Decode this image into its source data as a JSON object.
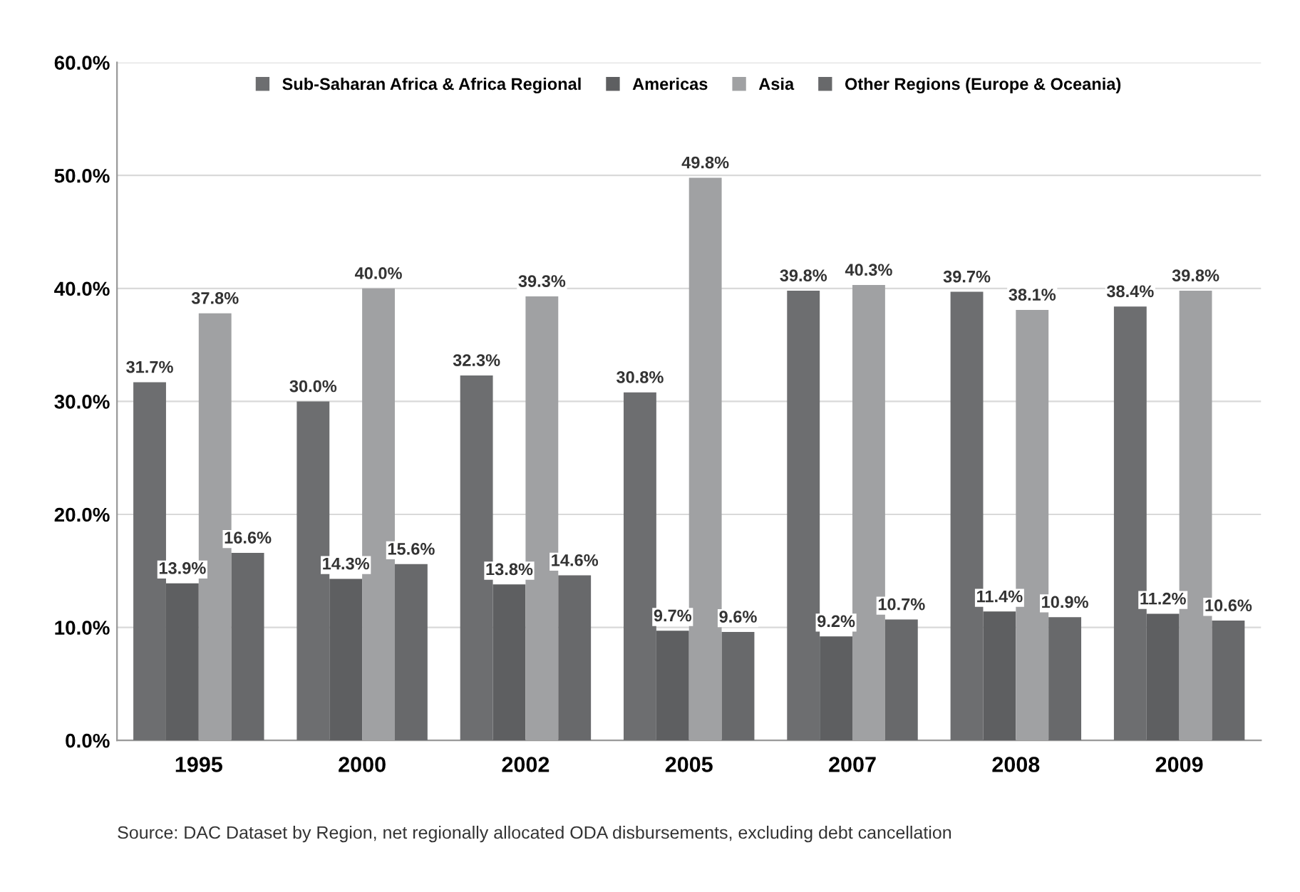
{
  "chart_data": {
    "type": "bar",
    "categories": [
      "1995",
      "2000",
      "2002",
      "2005",
      "2007",
      "2008",
      "2009"
    ],
    "series": [
      {
        "name": "Sub-Saharan Africa & Africa Regional",
        "color": "#6d6e70",
        "values": [
          31.7,
          30.0,
          32.3,
          30.8,
          39.8,
          39.7,
          38.4
        ],
        "value_labels": [
          "31.7%",
          "30.0%",
          "32.3%",
          "30.8%",
          "39.8%",
          "39.7%",
          "38.4%"
        ]
      },
      {
        "name": "Americas",
        "color": "#5e5f61",
        "values": [
          13.9,
          14.3,
          13.8,
          9.7,
          9.2,
          11.4,
          11.2
        ],
        "value_labels": [
          "13.9%",
          "14.3%",
          "13.8%",
          "9.7%",
          "9.2%",
          "11.4%",
          "11.2%"
        ]
      },
      {
        "name": "Asia",
        "color": "#a0a1a3",
        "values": [
          37.8,
          40.0,
          39.3,
          49.8,
          40.3,
          38.1,
          39.8
        ],
        "value_labels": [
          "37.8%",
          "40.0%",
          "39.3%",
          "49.8%",
          "40.3%",
          "38.1%",
          "39.8%"
        ]
      },
      {
        "name": "Other Regions (Europe & Oceania)",
        "color": "#68696b",
        "values": [
          16.6,
          15.6,
          14.6,
          9.6,
          10.7,
          10.9,
          10.6
        ],
        "value_labels": [
          "16.6%",
          "15.6%",
          "14.6%",
          "9.6%",
          "10.7%",
          "10.9%",
          "10.6%"
        ]
      }
    ],
    "ylim": [
      0,
      60
    ],
    "yticks": [
      {
        "value": 0,
        "label": "0.0%"
      },
      {
        "value": 10,
        "label": "10.0%"
      },
      {
        "value": 20,
        "label": "20.0%"
      },
      {
        "value": 30,
        "label": "30.0%"
      },
      {
        "value": 40,
        "label": "40.0%"
      },
      {
        "value": 50,
        "label": "50.0%"
      },
      {
        "value": 60,
        "label": "60.0%"
      }
    ],
    "grid": "y",
    "legend": "top",
    "annotations": [
      "Source: DAC Dataset by Region, net regionally allocated ODA disbursements, excluding debt cancellation"
    ]
  }
}
